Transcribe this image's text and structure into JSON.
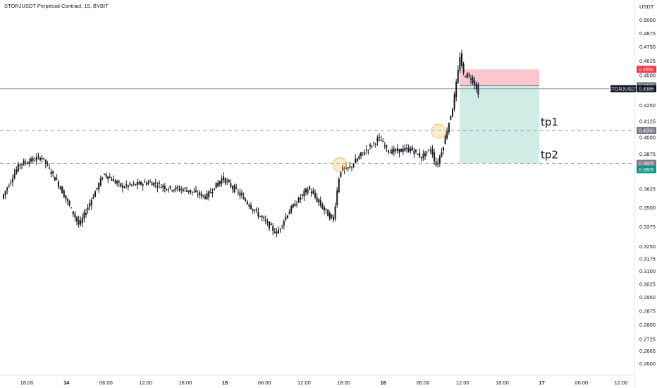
{
  "header": {
    "title": "STORJUSDT Perpetual Contract, 15, BYBIT",
    "currency": "USDT"
  },
  "chart_data": {
    "type": "candlestick",
    "symbol": "STORJUSDT",
    "interval": "15",
    "exchange": "BYBIT",
    "yscale": "log",
    "ylim": [
      0.258,
      0.5
    ],
    "price_ticks": [
      "0.5000",
      "0.4875",
      "0.4750",
      "0.4625",
      "0.4500",
      "0.4375",
      "0.4250",
      "0.4125",
      "0.4000",
      "0.3875",
      "0.3750",
      "0.3625",
      "0.3500",
      "0.3375",
      "0.3250",
      "0.3175",
      "0.3100",
      "0.3025",
      "0.2950",
      "0.2875",
      "0.2800",
      "0.2725",
      "0.2665",
      "0.2600"
    ],
    "time_ticks": [
      "18:00",
      "14",
      "06:00",
      "12:00",
      "18:00",
      "15",
      "06:00",
      "12:00",
      "18:00",
      "16",
      "06:00",
      "12:00",
      "18:00",
      "17",
      "06:00",
      "12:00"
    ],
    "price_tags": [
      {
        "label": "0.4550",
        "value": 0.455,
        "color": "#f23645"
      },
      {
        "label": "0.4410",
        "value": 0.441,
        "color": "#787b86"
      },
      {
        "label": "STORJUSDT",
        "value": 0.4385,
        "color": "#131722"
      },
      {
        "label": "0.4385",
        "value": 0.4385,
        "color": "#131722"
      },
      {
        "label": "0.4050",
        "value": 0.405,
        "color": "#787b86"
      },
      {
        "label": "0.3805",
        "value": 0.3805,
        "color": "#787b86"
      },
      {
        "label": "0.3805",
        "value": 0.3805,
        "color": "#089981"
      }
    ],
    "horizontal_lines": [
      {
        "value": 0.4385,
        "style": "solid",
        "color": "#9598a1"
      },
      {
        "value": 0.405,
        "style": "dashed",
        "color": "#9598a1"
      },
      {
        "value": 0.3805,
        "style": "dashed",
        "color": "#9598a1"
      }
    ],
    "position": {
      "type": "short",
      "entry": 0.441,
      "stop": 0.455,
      "target": 0.3805,
      "stop_color": "#f7b4bc",
      "target_color": "#bfe6dc"
    },
    "annotations": [
      {
        "text": "tp1",
        "value": 0.405
      },
      {
        "text": "tp2",
        "value": 0.3805
      }
    ],
    "highlight_circles": [
      {
        "value": 0.3805,
        "color": "#f7c26b"
      },
      {
        "value": 0.405,
        "color": "#f7c26b"
      }
    ],
    "candle_color": "#131722"
  }
}
